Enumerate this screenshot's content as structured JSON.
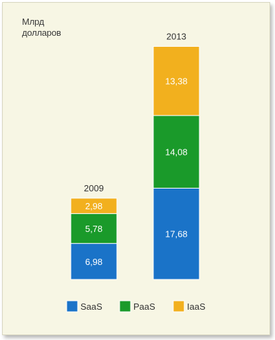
{
  "chart_data": {
    "type": "bar",
    "stacked": true,
    "unit_label_lines": [
      "Млрд",
      "долларов"
    ],
    "categories": [
      "2009",
      "2013"
    ],
    "series": [
      {
        "name": "SaaS",
        "color": "#1a73c8",
        "values": [
          6.98,
          17.68
        ],
        "labels": [
          "6,98",
          "17,68"
        ]
      },
      {
        "name": "PaaS",
        "color": "#1a9a2a",
        "values": [
          5.78,
          14.08
        ],
        "labels": [
          "5,78",
          "14,08"
        ]
      },
      {
        "name": "IaaS",
        "color": "#f2b01e",
        "values": [
          2.98,
          13.38
        ],
        "labels": [
          "2,98",
          "13,38"
        ]
      }
    ],
    "legend_position": "bottom",
    "grid": false
  }
}
